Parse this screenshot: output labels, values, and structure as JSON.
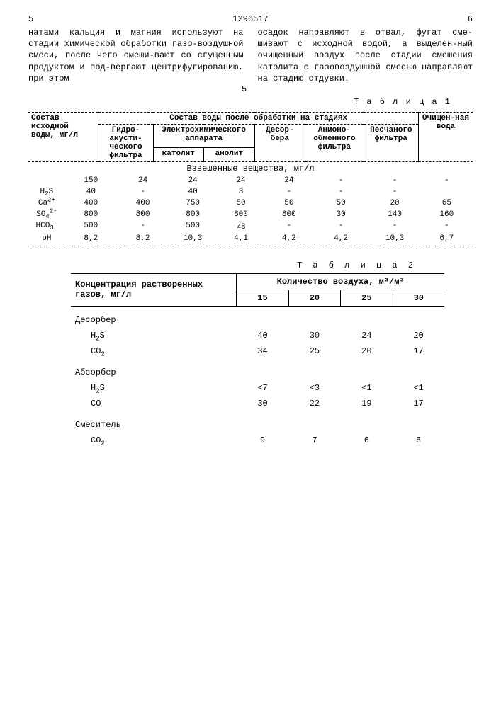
{
  "header": {
    "page_left": "5",
    "doc_number": "1296517",
    "page_right": "6"
  },
  "text": {
    "left": "натами кальция и магния используют на стадии химической обработки газо-воздушной смеси, после чего смеши-вают со сгущенным продуктом и под-вергают центрифугированию, при этом",
    "right": "осадок направляют в отвал, фугат сме-шивают с исходной водой, а выделен-ный очищенный воздух после стадии смешения католита с газовоздушной смесью направляют на стадию отдувки.",
    "line_marker": "5"
  },
  "table1": {
    "label": "Т а б л и ц а 1",
    "head": {
      "c0": "Состав исходной воды, мг/л",
      "group": "Состав воды после обработки на стадиях",
      "cols": [
        "Гидро-акусти-ческого фильтра",
        "Электрохимического аппарата",
        "Десор-бера",
        "Анионо-обменного фильтра",
        "Песчаного фильтра"
      ],
      "sub_electro": [
        "католит",
        "анолит"
      ],
      "last": "Очищен-ная вода"
    },
    "section": "Взвешенные вещества, мг/л",
    "rows": [
      {
        "label": "",
        "v": [
          "150",
          "24",
          "24",
          "24",
          "24",
          "-",
          "-",
          "-"
        ]
      },
      {
        "label": "H₂S",
        "v": [
          "40",
          "-",
          "40",
          "3",
          "-",
          "-",
          "-",
          ""
        ]
      },
      {
        "label": "Ca²⁺",
        "v": [
          "400",
          "400",
          "750",
          "50",
          "50",
          "50",
          "20",
          "65"
        ]
      },
      {
        "label": "SO₄²⁻",
        "v": [
          "800",
          "800",
          "800",
          "800",
          "800",
          "30",
          "140",
          "160"
        ]
      },
      {
        "label": "HCO₃⁻",
        "v": [
          "500",
          "-",
          "500",
          "∠8",
          "-",
          "-",
          "-",
          "-"
        ]
      },
      {
        "label": "pH",
        "v": [
          "8,2",
          "8,2",
          "10,3",
          "4,1",
          "4,2",
          "4,2",
          "10,3",
          "6,7"
        ]
      }
    ]
  },
  "table2": {
    "label": "Т а б л и ц а  2",
    "head": {
      "c0": "Концентрация растворенных газов, мг/л",
      "group": "Количество воздуха, м³/м³",
      "cols": [
        "15",
        "20",
        "25",
        "30"
      ]
    },
    "groups": [
      {
        "name": "Десорбер",
        "rows": [
          {
            "label": "H₂S",
            "v": [
              "40",
              "30",
              "24",
              "20"
            ]
          },
          {
            "label": "CO₂",
            "v": [
              "34",
              "25",
              "20",
              "17"
            ]
          }
        ]
      },
      {
        "name": "Абсорбер",
        "rows": [
          {
            "label": "H₂S",
            "v": [
              "<7",
              "<3",
              "<1",
              "<1"
            ]
          },
          {
            "label": "CO",
            "v": [
              "30",
              "22",
              "19",
              "17"
            ]
          }
        ]
      },
      {
        "name": "Смеситель",
        "rows": [
          {
            "label": "CO₂",
            "v": [
              "9",
              "7",
              "6",
              "6"
            ]
          }
        ]
      }
    ]
  }
}
